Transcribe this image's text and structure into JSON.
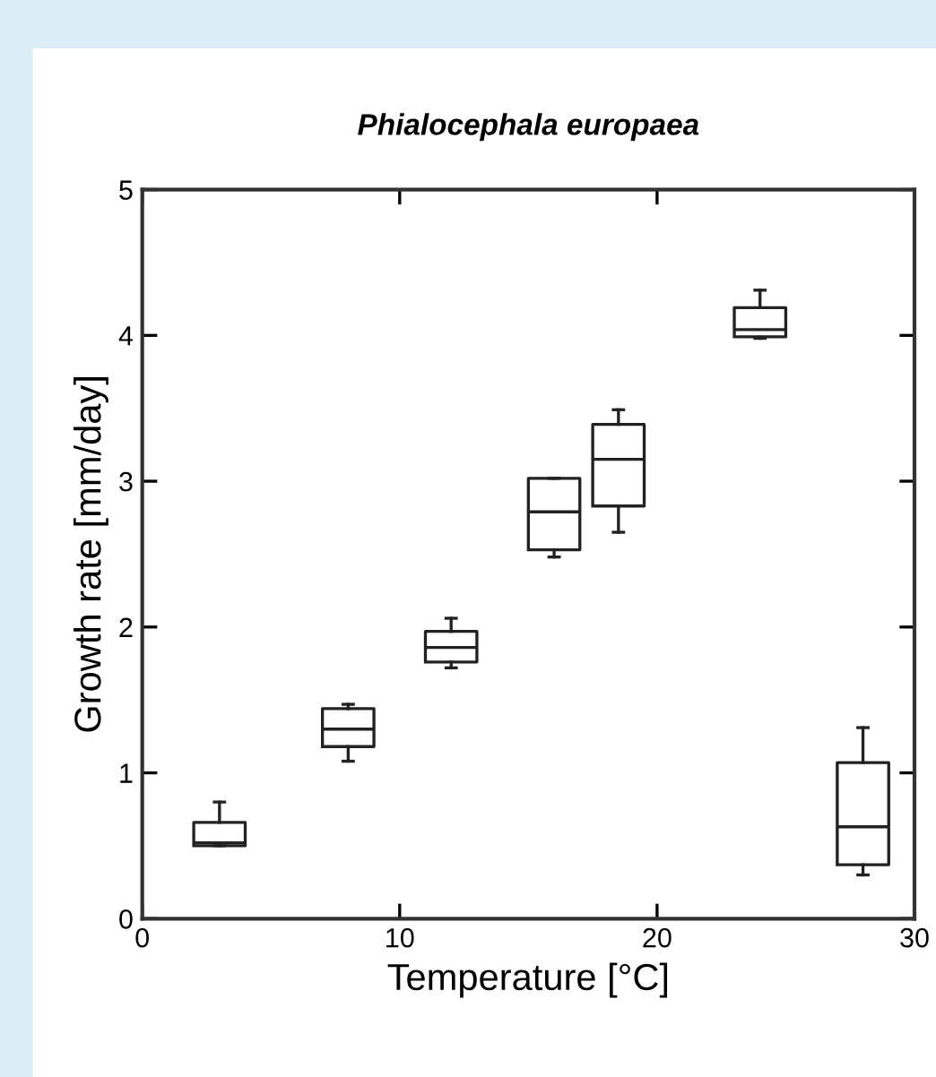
{
  "chart_data": {
    "type": "box",
    "title": "Phialocephala europaea",
    "xlabel": "Temperature [°C]",
    "ylabel": "Growth rate [mm/day]",
    "x": [
      3,
      8,
      12,
      16,
      18.5,
      24,
      28
    ],
    "boxes": [
      {
        "low": 0.5,
        "q1": 0.5,
        "median": 0.52,
        "q3": 0.66,
        "high": 0.8
      },
      {
        "low": 1.08,
        "q1": 1.18,
        "median": 1.3,
        "q3": 1.44,
        "high": 1.47
      },
      {
        "low": 1.72,
        "q1": 1.76,
        "median": 1.86,
        "q3": 1.97,
        "high": 2.06
      },
      {
        "low": 2.48,
        "q1": 2.53,
        "median": 2.79,
        "q3": 3.02,
        "high": 3.02
      },
      {
        "low": 2.65,
        "q1": 2.83,
        "median": 3.15,
        "q3": 3.39,
        "high": 3.49
      },
      {
        "low": 3.98,
        "q1": 3.99,
        "median": 4.04,
        "q3": 4.19,
        "high": 4.31
      },
      {
        "low": 0.3,
        "q1": 0.37,
        "median": 0.63,
        "q3": 1.07,
        "high": 1.31
      }
    ],
    "color": "#222222",
    "xlim": [
      0,
      30
    ],
    "xticks": [
      0,
      10,
      20,
      30
    ],
    "ylim": [
      0,
      5
    ],
    "yticks": [
      0,
      1,
      2,
      3,
      4,
      5
    ],
    "grid": false
  }
}
